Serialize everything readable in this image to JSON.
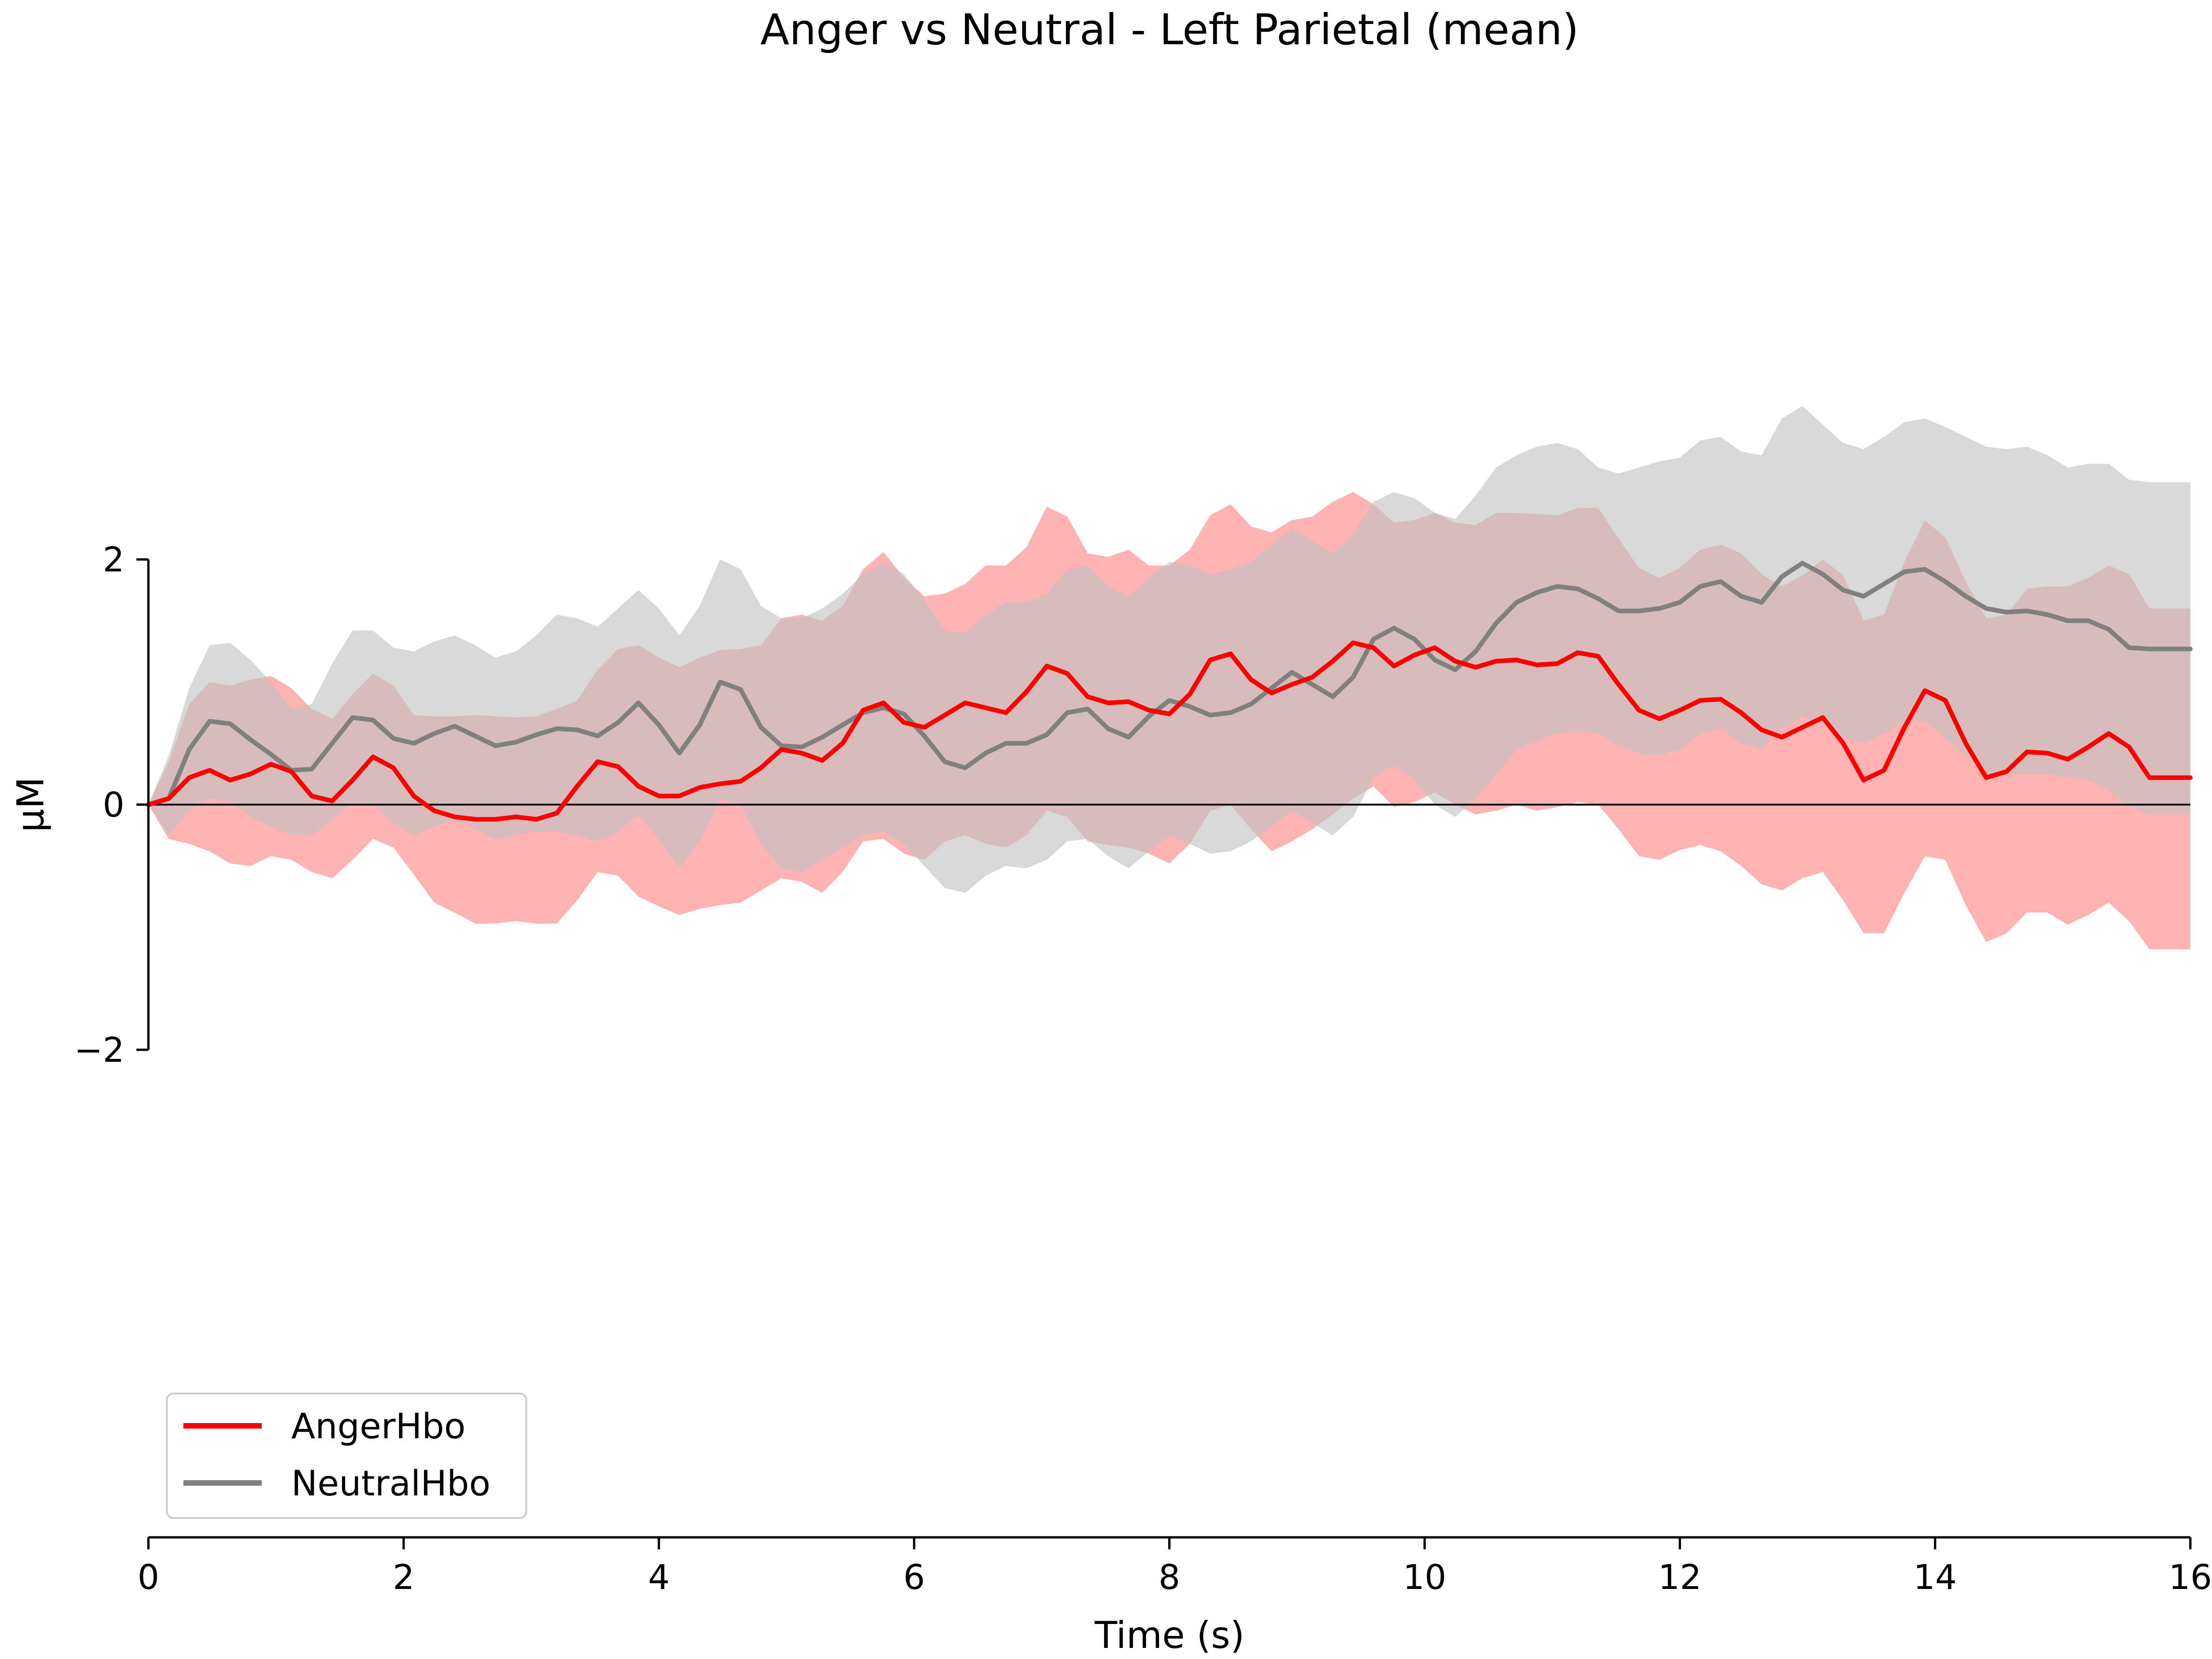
{
  "chart_data": {
    "type": "line",
    "title": "Anger vs Neutral - Left Parietal (mean)",
    "xlabel": "Time (s)",
    "ylabel": "µM",
    "xlim": [
      0,
      16
    ],
    "ylim": [
      -2,
      2
    ],
    "x_ticks": [
      0,
      2,
      4,
      6,
      8,
      10,
      12,
      14,
      16
    ],
    "y_ticks": [
      -2,
      0,
      2
    ],
    "x_tick_labels": [
      "0",
      "2",
      "4",
      "6",
      "8",
      "10",
      "12",
      "14",
      "16"
    ],
    "y_tick_labels": [
      "−2",
      "0",
      "2"
    ],
    "zero_line": true,
    "grid": false,
    "legend": {
      "location": "lower-left",
      "entries": [
        "AngerHbo",
        "NeutralHbo"
      ]
    },
    "colors": {
      "anger_line": "#ff0000",
      "anger_band": "#ff7f7f",
      "neutral_line": "#808080",
      "neutral_band": "#c0c0c0"
    },
    "series": [
      {
        "name": "AngerHbo",
        "x": [
          0,
          0.16,
          0.32,
          0.48,
          0.64,
          0.8,
          0.96,
          1.12,
          1.28,
          1.44,
          1.6,
          1.76,
          1.92,
          2.08,
          2.24,
          2.4,
          2.56,
          2.72,
          2.88,
          3.04,
          3.2,
          3.36,
          3.52,
          3.68,
          3.84,
          4.0,
          4.16,
          4.32,
          4.48,
          4.64,
          4.8,
          4.96,
          5.12,
          5.28,
          5.44,
          5.6,
          5.76,
          5.92,
          6.08,
          6.24,
          6.4,
          6.56,
          6.72,
          6.88,
          7.04,
          7.2,
          7.36,
          7.52,
          7.68,
          7.84,
          8.0,
          8.16,
          8.32,
          8.48,
          8.64,
          8.8,
          8.96,
          9.12,
          9.28,
          9.44,
          9.6,
          9.76,
          9.92,
          10.08,
          10.24,
          10.4,
          10.56,
          10.72,
          10.88,
          11.04,
          11.2,
          11.36,
          11.52,
          11.68,
          11.84,
          12.0,
          12.16,
          12.32,
          12.48,
          12.64,
          12.8,
          12.96,
          13.12,
          13.28,
          13.44,
          13.6,
          13.76,
          13.92,
          14.08,
          14.24,
          14.4,
          14.56,
          14.72,
          14.88,
          15.04,
          15.2,
          15.36,
          15.52,
          15.68,
          15.84,
          16.0
        ],
        "mean": [
          0,
          0.05,
          0.22,
          0.28,
          0.2,
          0.25,
          0.33,
          0.27,
          0.07,
          0.03,
          0.2,
          0.39,
          0.3,
          0.07,
          -0.05,
          -0.1,
          -0.12,
          -0.12,
          -0.1,
          -0.12,
          -0.07,
          0.15,
          0.35,
          0.31,
          0.15,
          0.07,
          0.07,
          0.14,
          0.17,
          0.19,
          0.3,
          0.45,
          0.42,
          0.36,
          0.5,
          0.77,
          0.83,
          0.67,
          0.63,
          0.73,
          0.83,
          0.79,
          0.75,
          0.92,
          1.13,
          1.07,
          0.88,
          0.83,
          0.84,
          0.77,
          0.74,
          0.9,
          1.18,
          1.23,
          1.02,
          0.91,
          0.98,
          1.04,
          1.17,
          1.32,
          1.28,
          1.13,
          1.22,
          1.28,
          1.17,
          1.12,
          1.17,
          1.18,
          1.14,
          1.15,
          1.24,
          1.21,
          0.98,
          0.77,
          0.7,
          0.77,
          0.85,
          0.86,
          0.75,
          0.61,
          0.55,
          0.63,
          0.71,
          0.5,
          0.2,
          0.28,
          0.63,
          0.93,
          0.85,
          0.5,
          0.22,
          0.27,
          0.43,
          0.42,
          0.37,
          0.47,
          0.58,
          0.47,
          0.22,
          0.22,
          0.22
        ],
        "upper": [
          0,
          0.35,
          0.82,
          1.0,
          0.97,
          1.02,
          1.05,
          0.95,
          0.78,
          0.7,
          0.9,
          1.07,
          0.97,
          0.73,
          0.72,
          0.72,
          0.73,
          0.72,
          0.71,
          0.72,
          0.78,
          0.85,
          1.1,
          1.27,
          1.3,
          1.2,
          1.12,
          1.2,
          1.26,
          1.27,
          1.3,
          1.52,
          1.55,
          1.5,
          1.62,
          1.92,
          2.06,
          1.85,
          1.7,
          1.72,
          1.8,
          1.95,
          1.95,
          2.1,
          2.43,
          2.35,
          2.05,
          2.02,
          2.08,
          1.95,
          1.95,
          2.08,
          2.36,
          2.45,
          2.27,
          2.22,
          2.32,
          2.35,
          2.47,
          2.55,
          2.45,
          2.3,
          2.32,
          2.38,
          2.3,
          2.28,
          2.38,
          2.38,
          2.37,
          2.36,
          2.42,
          2.42,
          2.17,
          1.93,
          1.85,
          1.93,
          2.08,
          2.12,
          2.05,
          1.88,
          1.78,
          1.87,
          2.0,
          1.87,
          1.5,
          1.55,
          1.98,
          2.32,
          2.18,
          1.82,
          1.52,
          1.55,
          1.76,
          1.78,
          1.78,
          1.85,
          1.95,
          1.88,
          1.6,
          1.6,
          1.6
        ],
        "lower": [
          0,
          -0.28,
          -0.32,
          -0.38,
          -0.48,
          -0.5,
          -0.42,
          -0.45,
          -0.55,
          -0.6,
          -0.45,
          -0.28,
          -0.35,
          -0.57,
          -0.8,
          -0.88,
          -0.97,
          -0.97,
          -0.95,
          -0.97,
          -0.97,
          -0.78,
          -0.55,
          -0.58,
          -0.75,
          -0.83,
          -0.9,
          -0.85,
          -0.82,
          -0.8,
          -0.7,
          -0.6,
          -0.63,
          -0.72,
          -0.55,
          -0.3,
          -0.28,
          -0.4,
          -0.45,
          -0.3,
          -0.25,
          -0.32,
          -0.35,
          -0.25,
          -0.05,
          -0.1,
          -0.3,
          -0.33,
          -0.35,
          -0.4,
          -0.48,
          -0.32,
          -0.05,
          0.0,
          -0.2,
          -0.38,
          -0.3,
          -0.2,
          -0.08,
          0.05,
          0.15,
          -0.02,
          0.02,
          0.1,
          0.0,
          -0.08,
          -0.05,
          0.0,
          -0.05,
          -0.02,
          0.02,
          0.0,
          -0.2,
          -0.42,
          -0.45,
          -0.37,
          -0.33,
          -0.38,
          -0.5,
          -0.65,
          -0.7,
          -0.6,
          -0.55,
          -0.78,
          -1.05,
          -1.05,
          -0.72,
          -0.42,
          -0.45,
          -0.82,
          -1.12,
          -1.05,
          -0.88,
          -0.88,
          -0.98,
          -0.9,
          -0.8,
          -0.95,
          -1.18,
          -1.18,
          -1.18
        ]
      },
      {
        "name": "NeutralHbo",
        "x": [
          0,
          0.16,
          0.32,
          0.48,
          0.64,
          0.8,
          0.96,
          1.12,
          1.28,
          1.44,
          1.6,
          1.76,
          1.92,
          2.08,
          2.24,
          2.4,
          2.56,
          2.72,
          2.88,
          3.04,
          3.2,
          3.36,
          3.52,
          3.68,
          3.84,
          4.0,
          4.16,
          4.32,
          4.48,
          4.64,
          4.8,
          4.96,
          5.12,
          5.28,
          5.44,
          5.6,
          5.76,
          5.92,
          6.08,
          6.24,
          6.4,
          6.56,
          6.72,
          6.88,
          7.04,
          7.2,
          7.36,
          7.52,
          7.68,
          7.84,
          8.0,
          8.16,
          8.32,
          8.48,
          8.64,
          8.8,
          8.96,
          9.12,
          9.28,
          9.44,
          9.6,
          9.76,
          9.92,
          10.08,
          10.24,
          10.4,
          10.56,
          10.72,
          10.88,
          11.04,
          11.2,
          11.36,
          11.52,
          11.68,
          11.84,
          12.0,
          12.16,
          12.32,
          12.48,
          12.64,
          12.8,
          12.96,
          13.12,
          13.28,
          13.44,
          13.6,
          13.76,
          13.92,
          14.08,
          14.24,
          14.4,
          14.56,
          14.72,
          14.88,
          15.04,
          15.2,
          15.36,
          15.52,
          15.68,
          15.84,
          16.0
        ],
        "mean": [
          0,
          0.05,
          0.45,
          0.68,
          0.66,
          0.53,
          0.41,
          0.28,
          0.29,
          0.5,
          0.71,
          0.69,
          0.54,
          0.5,
          0.58,
          0.64,
          0.56,
          0.48,
          0.51,
          0.57,
          0.62,
          0.61,
          0.56,
          0.67,
          0.83,
          0.65,
          0.42,
          0.65,
          1.0,
          0.94,
          0.63,
          0.48,
          0.47,
          0.55,
          0.65,
          0.75,
          0.79,
          0.74,
          0.56,
          0.35,
          0.3,
          0.42,
          0.5,
          0.5,
          0.57,
          0.75,
          0.78,
          0.62,
          0.55,
          0.72,
          0.85,
          0.8,
          0.73,
          0.75,
          0.82,
          0.95,
          1.08,
          0.98,
          0.88,
          1.04,
          1.35,
          1.44,
          1.35,
          1.18,
          1.1,
          1.25,
          1.48,
          1.65,
          1.73,
          1.78,
          1.76,
          1.68,
          1.58,
          1.58,
          1.6,
          1.65,
          1.78,
          1.82,
          1.7,
          1.65,
          1.86,
          1.97,
          1.88,
          1.75,
          1.7,
          1.8,
          1.9,
          1.92,
          1.82,
          1.7,
          1.6,
          1.57,
          1.58,
          1.55,
          1.5,
          1.5,
          1.43,
          1.28,
          1.27,
          1.27,
          1.27
        ],
        "upper": [
          0,
          0.4,
          0.95,
          1.3,
          1.32,
          1.18,
          1.0,
          0.78,
          0.82,
          1.15,
          1.42,
          1.42,
          1.28,
          1.25,
          1.33,
          1.38,
          1.3,
          1.2,
          1.25,
          1.38,
          1.55,
          1.52,
          1.45,
          1.6,
          1.75,
          1.6,
          1.38,
          1.62,
          2.0,
          1.92,
          1.62,
          1.52,
          1.52,
          1.6,
          1.72,
          1.88,
          1.98,
          1.88,
          1.67,
          1.42,
          1.4,
          1.55,
          1.65,
          1.65,
          1.72,
          1.92,
          1.95,
          1.78,
          1.7,
          1.85,
          1.98,
          1.95,
          1.88,
          1.92,
          1.98,
          2.12,
          2.25,
          2.15,
          2.05,
          2.2,
          2.47,
          2.55,
          2.5,
          2.38,
          2.33,
          2.52,
          2.75,
          2.85,
          2.92,
          2.95,
          2.9,
          2.75,
          2.7,
          2.75,
          2.8,
          2.83,
          2.97,
          3.0,
          2.88,
          2.85,
          3.15,
          3.25,
          3.1,
          2.95,
          2.9,
          3.0,
          3.12,
          3.15,
          3.08,
          3.0,
          2.92,
          2.9,
          2.92,
          2.85,
          2.75,
          2.78,
          2.78,
          2.65,
          2.63,
          2.63,
          2.63
        ],
        "lower": [
          0,
          -0.25,
          -0.05,
          0.05,
          0.02,
          -0.1,
          -0.18,
          -0.25,
          -0.25,
          -0.12,
          0.02,
          0.0,
          -0.15,
          -0.25,
          -0.18,
          -0.12,
          -0.2,
          -0.28,
          -0.25,
          -0.22,
          -0.22,
          -0.25,
          -0.3,
          -0.22,
          -0.08,
          -0.28,
          -0.52,
          -0.3,
          0.05,
          0.0,
          -0.32,
          -0.52,
          -0.55,
          -0.45,
          -0.35,
          -0.25,
          -0.22,
          -0.32,
          -0.5,
          -0.68,
          -0.72,
          -0.58,
          -0.5,
          -0.52,
          -0.45,
          -0.3,
          -0.28,
          -0.42,
          -0.52,
          -0.38,
          -0.25,
          -0.32,
          -0.4,
          -0.38,
          -0.3,
          -0.18,
          -0.05,
          -0.15,
          -0.25,
          -0.1,
          0.22,
          0.32,
          0.2,
          0.0,
          -0.1,
          0.05,
          0.25,
          0.45,
          0.52,
          0.58,
          0.6,
          0.58,
          0.48,
          0.42,
          0.4,
          0.45,
          0.58,
          0.62,
          0.5,
          0.45,
          0.62,
          0.72,
          0.65,
          0.55,
          0.5,
          0.58,
          0.68,
          0.68,
          0.55,
          0.4,
          0.28,
          0.25,
          0.25,
          0.25,
          0.22,
          0.2,
          0.12,
          -0.02,
          -0.08,
          -0.08,
          -0.08
        ]
      }
    ]
  }
}
